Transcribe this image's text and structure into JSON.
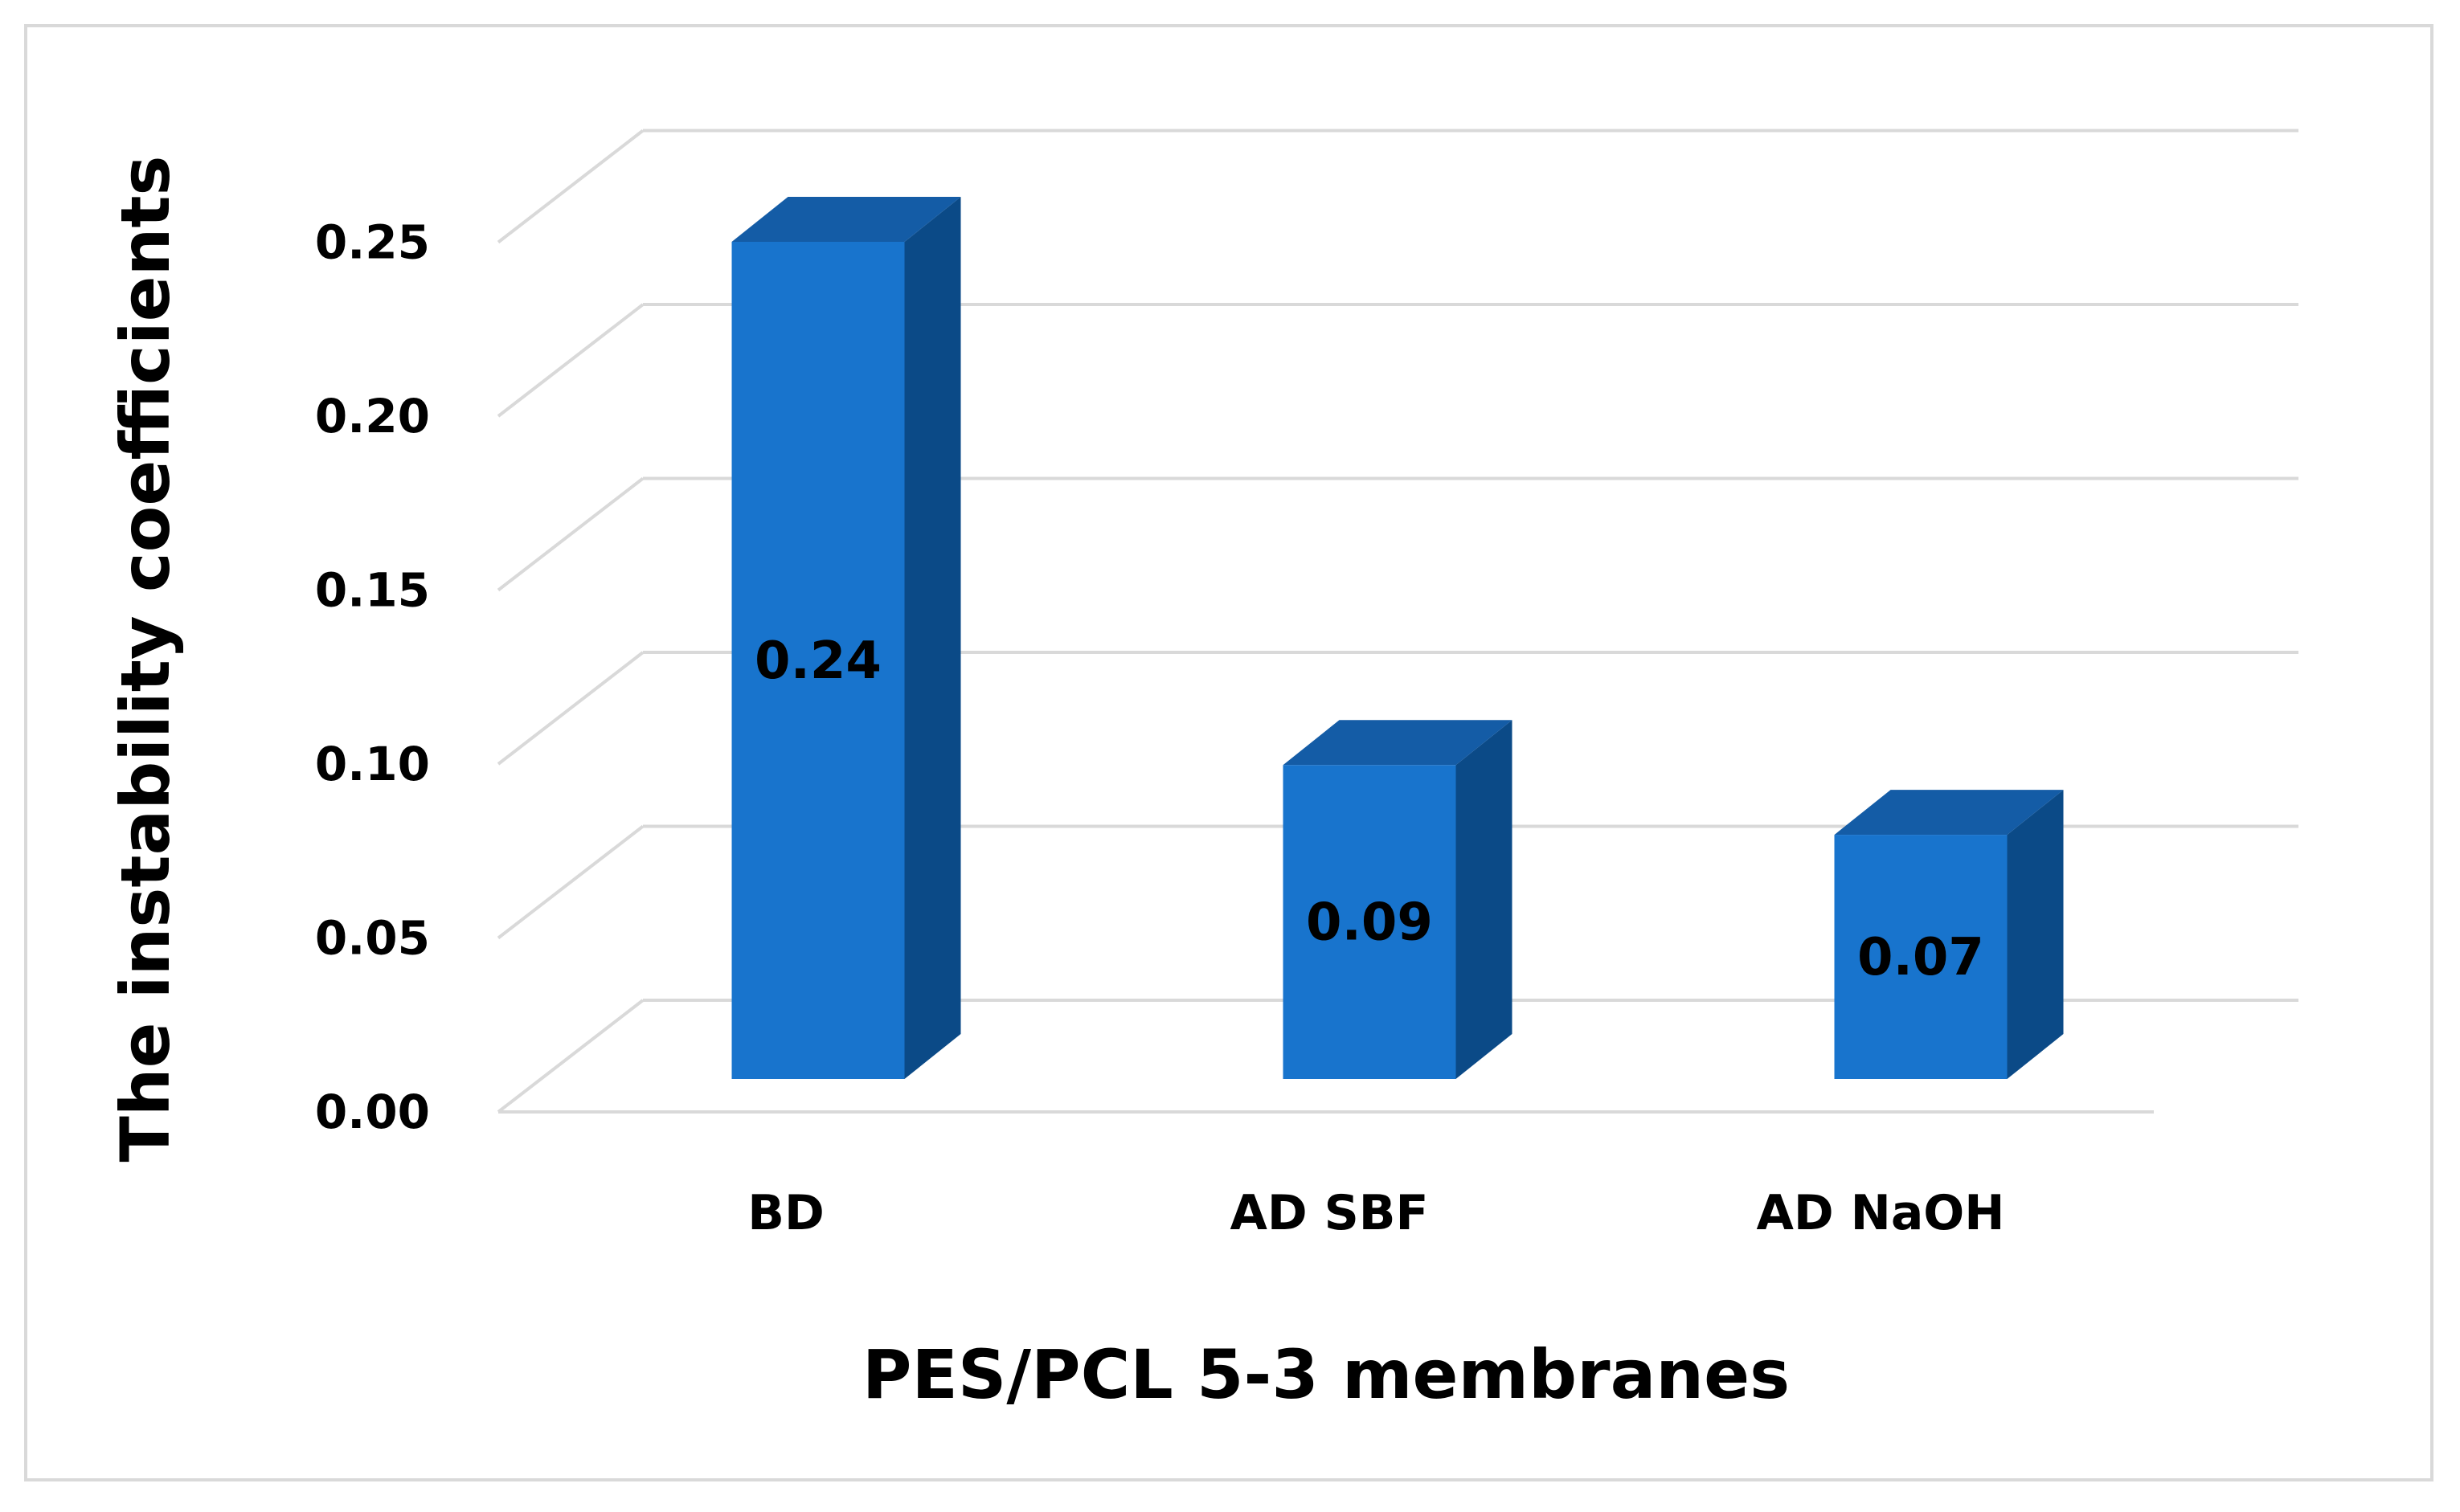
{
  "chart_data": {
    "type": "bar",
    "style": "3d-column",
    "categories": [
      "BD",
      "AD SBF",
      "AD NaOH"
    ],
    "values": [
      0.24,
      0.09,
      0.07
    ],
    "data_labels": [
      "0.24",
      "0.09",
      "0.07"
    ],
    "yticks": [
      "0.00",
      "0.05",
      "0.10",
      "0.15",
      "0.20",
      "0.25"
    ],
    "ylim": [
      0,
      0.25
    ],
    "title": "",
    "xlabel": "PES/PCL 5-3 membranes",
    "ylabel": "The instability coefficients",
    "grid": true,
    "legend": "none",
    "colors": {
      "front": "#1874CD",
      "side": "#0B4A87",
      "top": "#145CA6",
      "grid": "#d9d9d9"
    }
  }
}
